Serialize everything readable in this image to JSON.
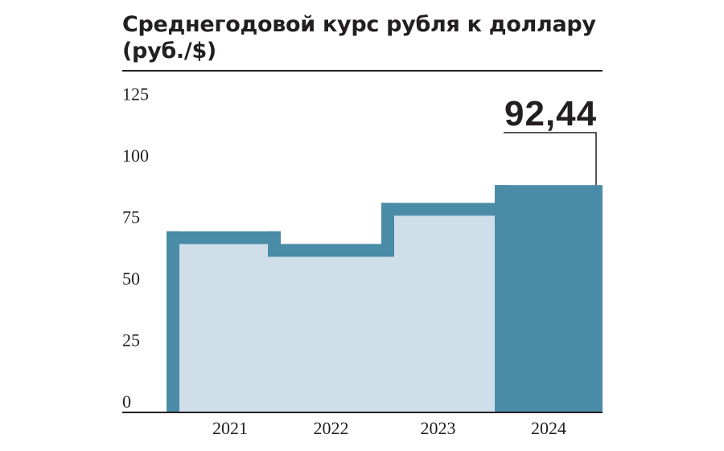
{
  "chart_data": {
    "type": "bar",
    "title": "Среднегодовой курс рубля к доллару",
    "subtitle": "(руб./$)",
    "categories": [
      "2021",
      "2022",
      "2023",
      "2024"
    ],
    "values": [
      73.65,
      68.5,
      85.2,
      92.44
    ],
    "y_ticks": [
      "0",
      "25",
      "50",
      "75",
      "100",
      "125"
    ],
    "ylim": [
      0,
      135
    ],
    "callout": {
      "category": "2024",
      "label": "92,44"
    },
    "colors": {
      "accent": "#4a8ca8",
      "fill": "#cfdfe9",
      "text": "#231f20"
    }
  }
}
